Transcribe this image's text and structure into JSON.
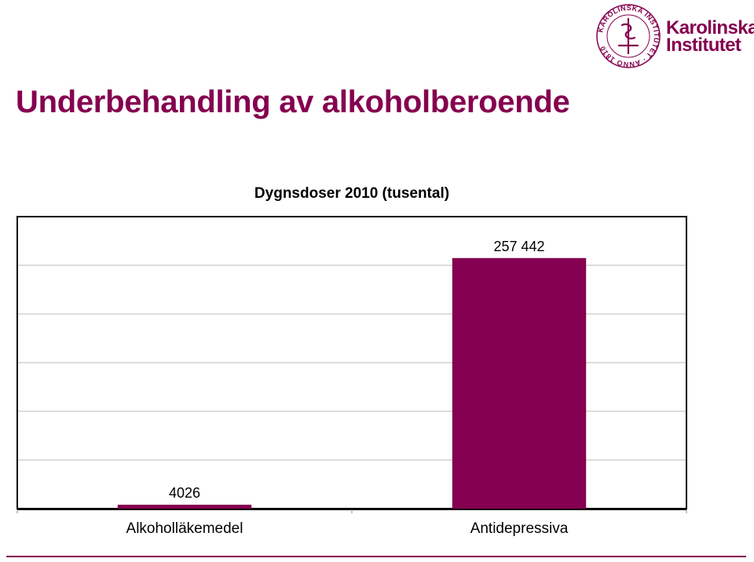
{
  "slide": {
    "title": "Underbehandling av alkoholberoende"
  },
  "logo": {
    "line1": "Karolinska",
    "line2": "Institutet",
    "seal_text": "KAROLINSKA INSTITUTET · ANNO 1810"
  },
  "colors": {
    "brand": "#850050",
    "bar": "#850050",
    "grid": "#c8c8c8",
    "frame": "#000000"
  },
  "chart_data": {
    "type": "bar",
    "title": "Dygnsdoser 2010 (tusental)",
    "categories": [
      "Alkoholläkemedel",
      "Antidepressiva"
    ],
    "values": [
      4026,
      257442
    ],
    "data_labels": [
      "4026",
      "257 442"
    ],
    "xlabel": "",
    "ylabel": "",
    "ylim": [
      0,
      300000
    ],
    "y_gridline_step": 50000,
    "y_tick_labels_shown": false,
    "grid": true,
    "legend": "none"
  }
}
